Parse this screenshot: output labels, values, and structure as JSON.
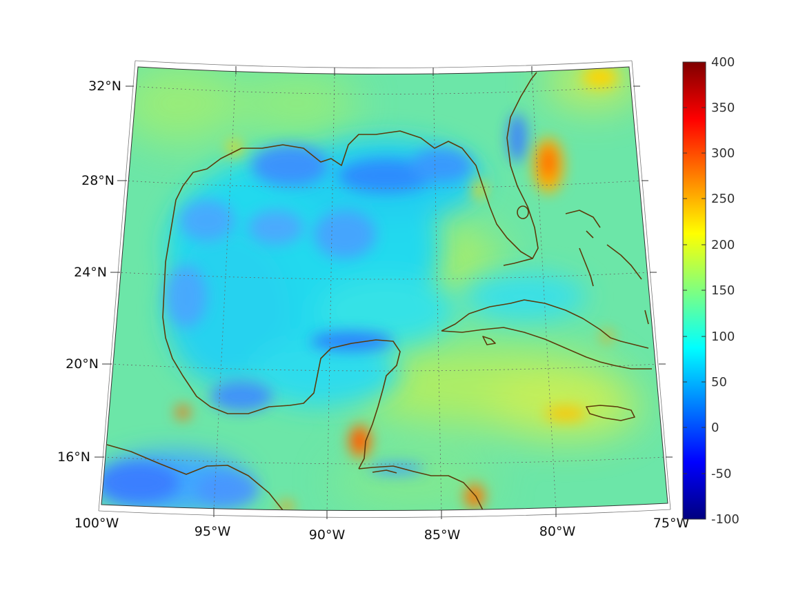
{
  "map": {
    "latitude_labels": [
      "32°N",
      "28°N",
      "24°N",
      "20°N",
      "16°N"
    ],
    "longitude_labels": [
      "100°W",
      "95°W",
      "90°W",
      "85°W",
      "80°W",
      "75°W"
    ],
    "colorbar": {
      "ticks": [
        "400",
        "350",
        "300",
        "250",
        "200",
        "150",
        "100",
        "50",
        "0",
        "-50",
        "-100"
      ],
      "min": -100,
      "max": 400,
      "colormap": "jet"
    },
    "colors": {
      "ocean_base": "#6fe0b0",
      "land_outline": "#5b3a0a",
      "graticule": "#666666"
    }
  }
}
